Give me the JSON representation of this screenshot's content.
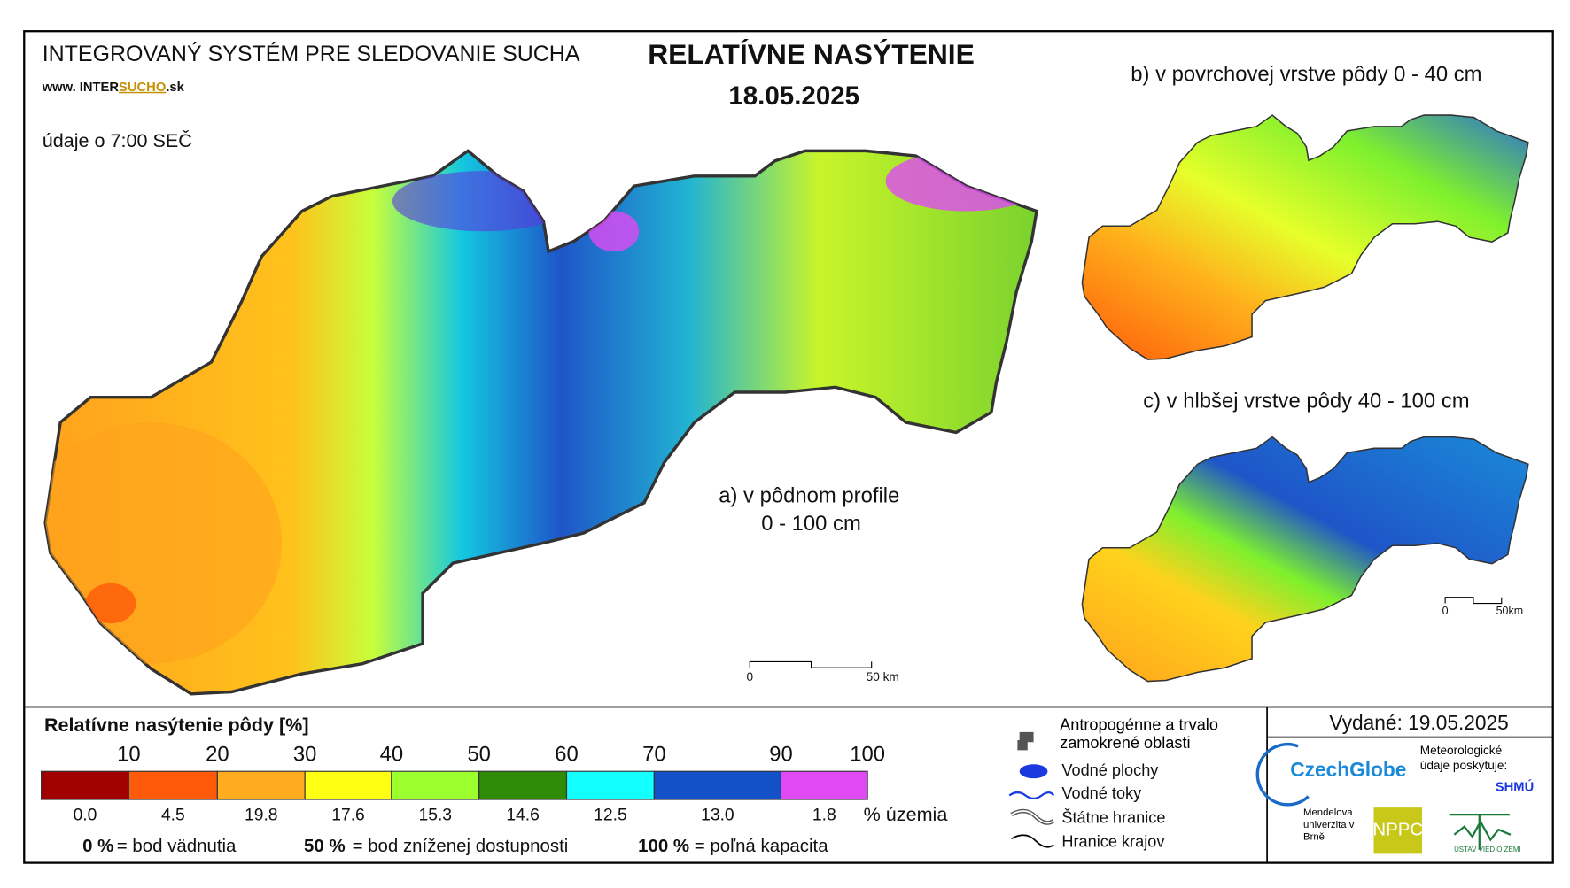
{
  "header": {
    "system": "INTEGROVANÝ SYSTÉM PRE SLEDOVANIE SUCHA",
    "url_prefix": "www. INTER",
    "url_accent": "SUCHO",
    "url_suffix": ".sk",
    "title": "RELATÍVNE NASÝTENIE",
    "date": "18.05.2025",
    "time_note": "údaje o 7:00 SEČ"
  },
  "maps": [
    {
      "label": "a) v pôdnom profile",
      "sublabel": "0 - 100 cm",
      "scale_start": "0",
      "scale_end": "50 km"
    },
    {
      "label": "b) v povrchovej vrstve pôdy 0 - 40 cm"
    },
    {
      "label": "c) v hlbšej vrstve pôdy 40 - 100 cm",
      "scale_start": "0",
      "scale_end": "50km"
    }
  ],
  "legend": {
    "title": "Relatívne nasýtenie pôdy [%]",
    "bounds": [
      10,
      20,
      30,
      40,
      50,
      60,
      70,
      90,
      100
    ],
    "classes": [
      {
        "color": "#a00000",
        "share": "0.0"
      },
      {
        "color": "#ff5a0a",
        "share": "4.5"
      },
      {
        "color": "#ffad1f",
        "share": "19.8"
      },
      {
        "color": "#ffff14",
        "share": "17.6"
      },
      {
        "color": "#9cff2e",
        "share": "15.3"
      },
      {
        "color": "#2f8a05",
        "share": "14.6"
      },
      {
        "color": "#14ffff",
        "share": "12.5"
      },
      {
        "color": "#1450c8",
        "share": "13.0"
      },
      {
        "color": "#e04af5",
        "share": "1.8"
      }
    ],
    "share_unit": "% územia",
    "notes": [
      {
        "value": "0 %",
        "text": "= bod vädnutia"
      },
      {
        "value": "50 %",
        "text": "= bod zníženej dostupnosti"
      },
      {
        "value": "100 %",
        "text": "= poľná kapacita"
      }
    ]
  },
  "symbols": [
    "Antropogénne a trvalo zamokrené oblasti",
    "Vodné plochy",
    "Vodné toky",
    "Štátne hranice",
    "Hranice krajov"
  ],
  "issued": "Vydané: 19.05.2025",
  "providers": {
    "czechglobe": "CzechGlobe",
    "meteo": "Meteorologické údaje poskytuje:",
    "shmu": "SHMÚ",
    "mendel": "Mendelova univerzita v Brně",
    "npc": "NPPC",
    "uvz": "ÚSTAV VIED O ZEMI"
  }
}
